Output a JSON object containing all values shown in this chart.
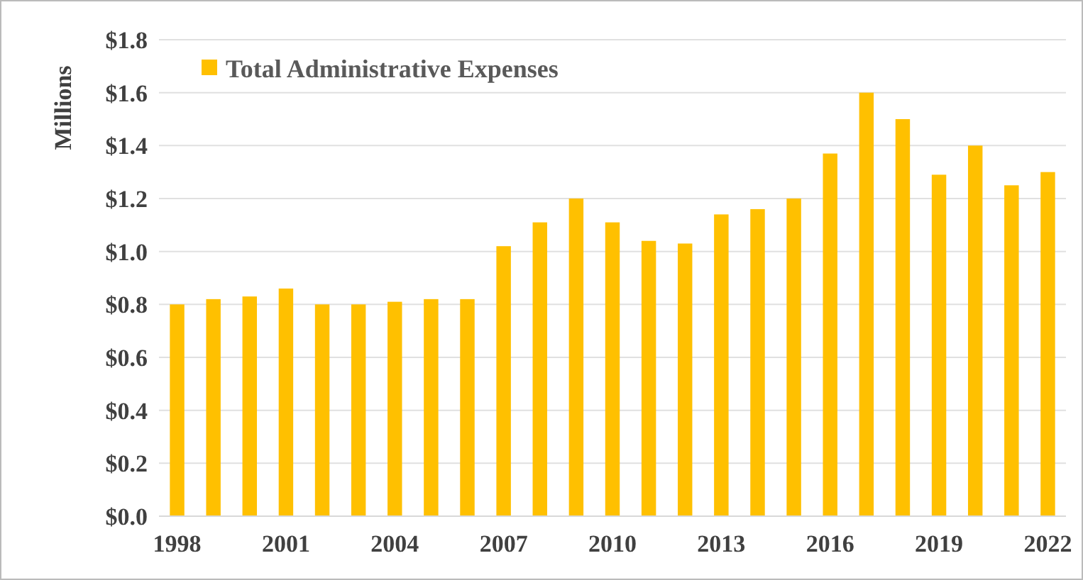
{
  "chart_data": {
    "type": "bar",
    "ylabel": "Millions",
    "categories": [
      "1998",
      null,
      null,
      "2001",
      null,
      null,
      "2004",
      null,
      null,
      "2007",
      null,
      null,
      "2010",
      null,
      null,
      "2013",
      null,
      null,
      "2016",
      null,
      null,
      "2019",
      null,
      null,
      "2022"
    ],
    "series": [
      {
        "name": "Total Administrative Expenses",
        "color": "#ffc000",
        "values": [
          0.8,
          0.82,
          0.83,
          0.86,
          0.8,
          0.8,
          0.81,
          0.82,
          0.82,
          1.02,
          1.11,
          1.2,
          1.11,
          1.04,
          1.03,
          1.14,
          1.16,
          1.2,
          1.37,
          1.6,
          1.5,
          1.29,
          1.4,
          1.25,
          1.3
        ]
      }
    ],
    "ylim": [
      0,
      1.8
    ],
    "yticks": [
      {
        "value": 0,
        "label": "$0.0"
      },
      {
        "value": 0.2,
        "label": "$0.2"
      },
      {
        "value": 0.4,
        "label": "$0.4"
      },
      {
        "value": 0.6,
        "label": "$0.6"
      },
      {
        "value": 0.8,
        "label": "$0.8"
      },
      {
        "value": 1.0,
        "label": "$1.0"
      },
      {
        "value": 1.2,
        "label": "$1.2"
      },
      {
        "value": 1.4,
        "label": "$1.4"
      },
      {
        "value": 1.6,
        "label": "$1.6"
      },
      {
        "value": 1.8,
        "label": "$1.8"
      }
    ],
    "grid": "y",
    "legend": "top left"
  }
}
